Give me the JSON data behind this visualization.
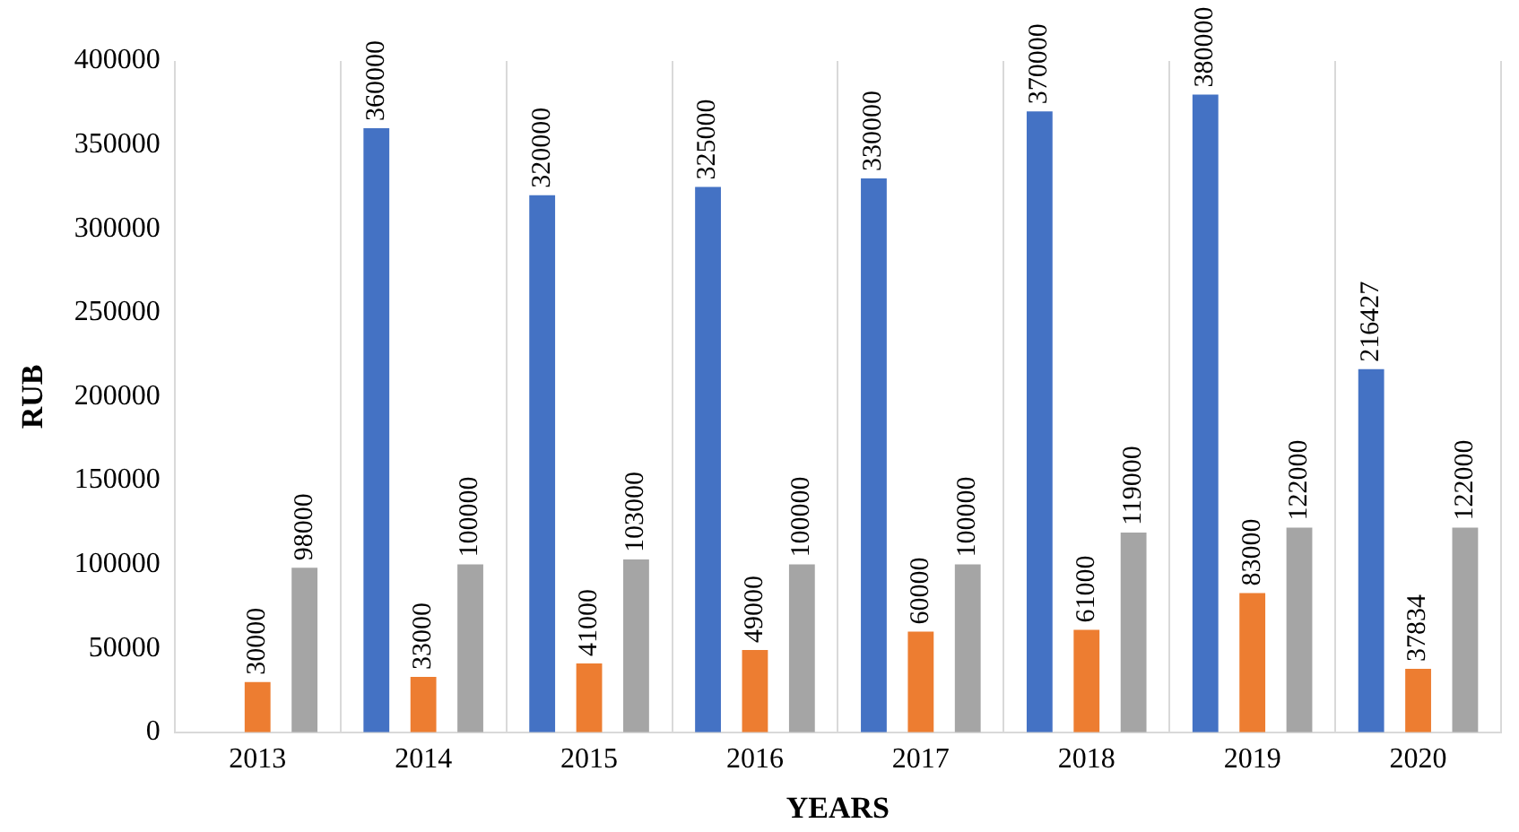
{
  "chart_data": {
    "type": "bar",
    "xlabel": "YEARS",
    "ylabel": "RUB",
    "categories": [
      "2013",
      "2014",
      "2015",
      "2016",
      "2017",
      "2018",
      "2019",
      "2020"
    ],
    "series": [
      {
        "color": "#4472c4",
        "values": [
          null,
          360000,
          320000,
          325000,
          330000,
          370000,
          380000,
          216427
        ]
      },
      {
        "color": "#ed7d31",
        "values": [
          30000,
          33000,
          41000,
          49000,
          60000,
          61000,
          83000,
          37834
        ]
      },
      {
        "color": "#a5a5a5",
        "values": [
          98000,
          100000,
          103000,
          100000,
          100000,
          119000,
          122000,
          122000
        ]
      }
    ],
    "ylim": [
      0,
      400000
    ],
    "yticks": [
      0,
      50000,
      100000,
      150000,
      200000,
      250000,
      300000,
      350000,
      400000
    ],
    "grid": "x",
    "legend": false,
    "data_labels": true
  }
}
